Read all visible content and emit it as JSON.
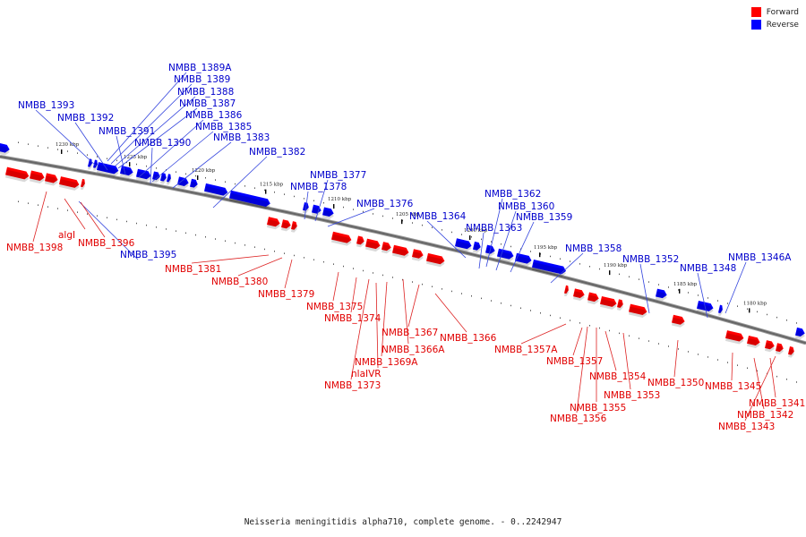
{
  "legend": {
    "items": [
      {
        "label": "Forward",
        "color": "#ff0000"
      },
      {
        "label": "Reverse",
        "color": "#0000ff"
      }
    ]
  },
  "caption": "Neisseria meningitidis alpha710, complete genome. - 0..2242947",
  "colors": {
    "forward": "#ff0000",
    "reverse": "#0000ff",
    "forward_text": "#e10000",
    "reverse_text": "#0000cc",
    "backbone": "#666666"
  },
  "ticks": [
    "1230 kbp",
    "1225 kbp",
    "1220 kbp",
    "1215 kbp",
    "1210 kbp",
    "1205 kbp",
    "1200 kbp",
    "1195 kbp",
    "1190 kbp",
    "1185 kbp",
    "1180 kbp"
  ],
  "reverse_labels": [
    "NMBB_1389A",
    "NMBB_1389",
    "NMBB_1388",
    "NMBB_1387",
    "NMBB_1393",
    "NMBB_1386",
    "NMBB_1392",
    "NMBB_1385",
    "NMBB_1391",
    "NMBB_1383",
    "NMBB_1390",
    "NMBB_1382",
    "NMBB_1377",
    "NMBB_1378",
    "NMBB_1376",
    "NMBB_1364",
    "NMBB_1362",
    "NMBB_1360",
    "NMBB_1363",
    "NMBB_1359",
    "NMBB_1358",
    "NMBB_1352",
    "NMBB_1348",
    "NMBB_1346A",
    "NMBB_1395"
  ],
  "forward_labels": [
    "NMBB_1398",
    "algI",
    "NMBB_1396",
    "NMBB_1381",
    "NMBB_1380",
    "NMBB_1379",
    "NMBB_1375",
    "NMBB_1374",
    "NMBB_1367",
    "NMBB_1366A",
    "NMBB_1369A",
    "nlaIVR",
    "NMBB_1373",
    "NMBB_1366",
    "NMBB_1357A",
    "NMBB_1357",
    "NMBB_1354",
    "NMBB_1353",
    "NMBB_1355",
    "NMBB_1356",
    "NMBB_1350",
    "NMBB_1345",
    "NMBB_1341",
    "NMBB_1342",
    "NMBB_1343"
  ]
}
